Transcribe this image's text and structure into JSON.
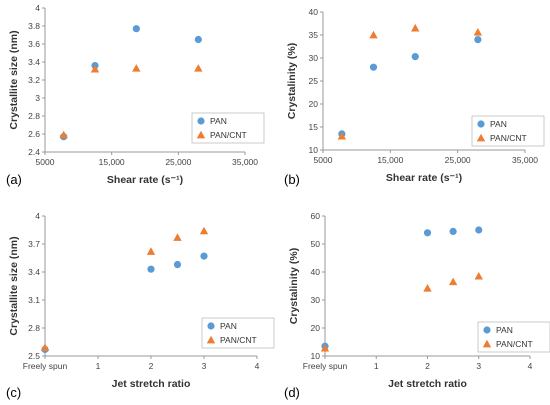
{
  "colors": {
    "PAN": "#5B9BD5",
    "PAN/CNT": "#ED7D31",
    "axis": "#999999",
    "legendBorder": "#BFBFBF"
  },
  "chart_data": [
    {
      "type": "scatter",
      "panel": "(a)",
      "xlabel": "Shear rate (s⁻¹)",
      "ylabel": "Crystallite size (nm)",
      "xlim": [
        5000,
        35000
      ],
      "ylim": [
        2.4,
        4.0
      ],
      "xticks": [
        5000,
        15000,
        25000,
        35000
      ],
      "xtick_labels": [
        "5000",
        "15,000",
        "25,000",
        "35,000"
      ],
      "yticks": [
        2.4,
        2.6,
        2.8,
        3.0,
        3.2,
        3.4,
        3.6,
        3.8,
        4.0
      ],
      "ytick_labels": [
        "2.4",
        "2.6",
        "2.8",
        "3",
        "3.2",
        "3.4",
        "3.6",
        "3.8",
        "4"
      ],
      "legend": "bottom-right",
      "series": [
        {
          "name": "PAN",
          "marker": "circle",
          "x": [
            7800,
            12500,
            18700,
            28000
          ],
          "y": [
            2.57,
            3.36,
            3.77,
            3.65
          ]
        },
        {
          "name": "PAN/CNT",
          "marker": "triangle",
          "x": [
            7800,
            12500,
            18700,
            28000
          ],
          "y": [
            2.59,
            3.32,
            3.33,
            3.33
          ]
        }
      ]
    },
    {
      "type": "scatter",
      "panel": "(b)",
      "xlabel": "Shear rate (s⁻¹)",
      "ylabel": "Crystalinity (%)",
      "xlim": [
        5000,
        35000
      ],
      "ylim": [
        10,
        40
      ],
      "xticks": [
        5000,
        15000,
        25000,
        35000
      ],
      "xtick_labels": [
        "5000",
        "15,000",
        "25,000",
        "35,000"
      ],
      "yticks": [
        10,
        15,
        20,
        25,
        30,
        35,
        40
      ],
      "ytick_labels": [
        "10",
        "15",
        "20",
        "25",
        "30",
        "35",
        "40"
      ],
      "legend": "bottom-right",
      "series": [
        {
          "name": "PAN",
          "marker": "circle",
          "x": [
            7800,
            12500,
            18700,
            28000
          ],
          "y": [
            13.5,
            28.0,
            30.3,
            34.0
          ]
        },
        {
          "name": "PAN/CNT",
          "marker": "triangle",
          "x": [
            7800,
            12500,
            18700,
            28000
          ],
          "y": [
            13.0,
            35.0,
            36.5,
            35.6
          ]
        }
      ]
    },
    {
      "type": "scatter",
      "panel": "(c)",
      "xlabel": "Jet stretch ratio",
      "ylabel": "Crystallite size (nm)",
      "xlim": [
        0,
        4
      ],
      "ylim": [
        2.5,
        4.0
      ],
      "xticks": [
        0,
        1,
        2,
        3,
        4
      ],
      "xtick_labels": [
        "Freely spun",
        "1",
        "2",
        "3",
        "4"
      ],
      "yticks": [
        2.5,
        2.8,
        3.1,
        3.4,
        3.7,
        4.0
      ],
      "ytick_labels": [
        "2.5",
        "2.8",
        "3.1",
        "3.4",
        "3.7",
        "4"
      ],
      "legend": "bottom-right",
      "series": [
        {
          "name": "PAN",
          "marker": "circle",
          "x": [
            0,
            2,
            2.5,
            3
          ],
          "y": [
            2.57,
            3.43,
            3.48,
            3.57
          ]
        },
        {
          "name": "PAN/CNT",
          "marker": "triangle",
          "x": [
            0,
            2,
            2.5,
            3
          ],
          "y": [
            2.59,
            3.62,
            3.77,
            3.84
          ]
        }
      ]
    },
    {
      "type": "scatter",
      "panel": "(d)",
      "xlabel": "Jet stretch ratio",
      "ylabel": "Crystalinity (%)",
      "xlim": [
        0,
        4
      ],
      "ylim": [
        10,
        60
      ],
      "xticks": [
        0,
        1,
        2,
        3,
        4
      ],
      "xtick_labels": [
        "Freely spun",
        "1",
        "2",
        "3",
        "4"
      ],
      "yticks": [
        10,
        20,
        30,
        40,
        50,
        60
      ],
      "ytick_labels": [
        "10",
        "20",
        "30",
        "40",
        "50",
        "60"
      ],
      "legend": "bottom-right",
      "series": [
        {
          "name": "PAN",
          "marker": "circle",
          "x": [
            0,
            2,
            2.5,
            3
          ],
          "y": [
            13.5,
            54.0,
            54.5,
            55.0
          ]
        },
        {
          "name": "PAN/CNT",
          "marker": "triangle",
          "x": [
            0,
            2,
            2.5,
            3
          ],
          "y": [
            12.8,
            34.2,
            36.5,
            38.5
          ]
        }
      ]
    }
  ]
}
